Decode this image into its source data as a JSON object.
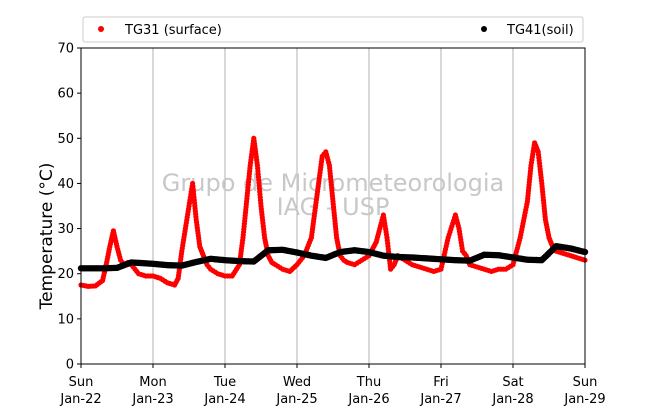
{
  "chart_data": {
    "type": "scatter",
    "ylabel": "Temperature (°C)",
    "ylim": [
      0,
      70
    ],
    "yticks": [
      0,
      10,
      20,
      30,
      40,
      50,
      60,
      70
    ],
    "xlim": [
      0,
      7
    ],
    "xticks": [
      {
        "day": "Sun",
        "date": "Jan-22"
      },
      {
        "day": "Mon",
        "date": "Jan-23"
      },
      {
        "day": "Tue",
        "date": "Jan-24"
      },
      {
        "day": "Wed",
        "date": "Jan-25"
      },
      {
        "day": "Thu",
        "date": "Jan-26"
      },
      {
        "day": "Fri",
        "date": "Jan-27"
      },
      {
        "day": "Sat",
        "date": "Jan-28"
      },
      {
        "day": "Sun",
        "date": "Jan-29"
      }
    ],
    "grid": "vertical",
    "legend": "top",
    "watermark": [
      "Grupo de Micrometeorologia",
      "IAG - USP"
    ],
    "series": [
      {
        "name": "TG31 (surface)",
        "color": "#ff0000",
        "x": [
          0.0,
          0.1,
          0.2,
          0.3,
          0.35,
          0.4,
          0.45,
          0.5,
          0.55,
          0.6,
          0.65,
          0.7,
          0.8,
          0.9,
          1.0,
          1.1,
          1.2,
          1.3,
          1.35,
          1.4,
          1.45,
          1.5,
          1.55,
          1.6,
          1.65,
          1.7,
          1.75,
          1.8,
          1.9,
          2.0,
          2.1,
          2.2,
          2.25,
          2.3,
          2.35,
          2.4,
          2.45,
          2.5,
          2.55,
          2.6,
          2.65,
          2.7,
          2.8,
          2.9,
          3.0,
          3.1,
          3.2,
          3.25,
          3.3,
          3.35,
          3.4,
          3.45,
          3.5,
          3.55,
          3.6,
          3.65,
          3.7,
          3.8,
          3.9,
          4.0,
          4.1,
          4.2,
          4.25,
          4.3,
          4.35,
          4.4,
          4.5,
          4.6,
          4.7,
          4.8,
          4.9,
          5.0,
          5.1,
          5.2,
          5.25,
          5.3,
          5.35,
          5.4,
          5.5,
          5.6,
          5.7,
          5.8,
          5.9,
          6.0,
          6.1,
          6.2,
          6.25,
          6.3,
          6.35,
          6.4,
          6.45,
          6.5,
          6.55,
          6.6,
          6.7,
          6.8,
          6.9,
          7.0
        ],
        "y": [
          17.5,
          17.2,
          17.3,
          18.5,
          22,
          26,
          29.5,
          26,
          23,
          22,
          22.5,
          22,
          20,
          19.5,
          19.5,
          19,
          18,
          17.5,
          19,
          25,
          30,
          35,
          40,
          32,
          26,
          24,
          22,
          21,
          20,
          19.5,
          19.5,
          22,
          28,
          36,
          44,
          50,
          44,
          35,
          28,
          24,
          22.5,
          22,
          21,
          20.5,
          22,
          24,
          28,
          34,
          40,
          46,
          47,
          44,
          36,
          28,
          24,
          23,
          22.5,
          22,
          23,
          24,
          27,
          33,
          28,
          21,
          22,
          24,
          23,
          22,
          21.5,
          21,
          20.5,
          21,
          28,
          33,
          30,
          25,
          24,
          22,
          21.5,
          21,
          20.5,
          21,
          21,
          22,
          28,
          36,
          44,
          49,
          47,
          40,
          32,
          28,
          26,
          25,
          24.5,
          24,
          23.5,
          23
        ]
      },
      {
        "name": "TG41(soil)",
        "color": "#000000",
        "x": [
          0.0,
          0.3,
          0.5,
          0.7,
          0.9,
          1.0,
          1.2,
          1.4,
          1.6,
          1.8,
          2.0,
          2.2,
          2.4,
          2.6,
          2.8,
          3.0,
          3.2,
          3.4,
          3.6,
          3.8,
          4.0,
          4.2,
          4.4,
          4.6,
          4.8,
          5.0,
          5.2,
          5.4,
          5.6,
          5.8,
          6.0,
          6.2,
          6.4,
          6.6,
          6.8,
          7.0
        ],
        "y": [
          21.2,
          21.2,
          21.3,
          22.5,
          22.3,
          22.2,
          21.9,
          21.8,
          22.6,
          23.3,
          23,
          22.8,
          22.7,
          25.2,
          25.3,
          24.7,
          24,
          23.5,
          24.8,
          25.2,
          24.8,
          24,
          23.7,
          23.6,
          23.4,
          23.2,
          23,
          22.9,
          24.2,
          24.1,
          23.6,
          23.1,
          23,
          26.1,
          25.6,
          24.8
        ]
      }
    ]
  }
}
